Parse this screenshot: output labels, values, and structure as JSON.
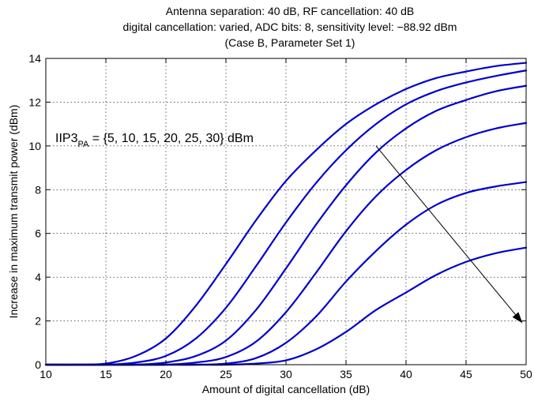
{
  "chart_data": {
    "type": "line",
    "title_lines": [
      "Antenna separation: 40 dB, RF cancellation: 40 dB",
      "digital cancellation: varied, ADC bits: 8, sensitivity level: −88.92 dBm",
      "(Case B, Parameter Set 1)"
    ],
    "xlabel": "Amount of digital cancellation (dB)",
    "ylabel": "Increase in maximum transmit power (dBm)",
    "xlim": [
      10,
      50
    ],
    "ylim": [
      0,
      14
    ],
    "xticks": [
      10,
      15,
      20,
      25,
      30,
      35,
      40,
      45,
      50
    ],
    "yticks": [
      0,
      2,
      4,
      6,
      8,
      10,
      12,
      14
    ],
    "grid": true,
    "line_color": "#0000cc",
    "annotation": {
      "text_main": "IIP3",
      "text_sub": "PA",
      "text_rest": " = {5, 10, 15, 20, 25, 30} dBm",
      "arrow_from": [
        37.5,
        10.0
      ],
      "arrow_to": [
        49.7,
        1.9
      ]
    },
    "x": [
      10,
      12.5,
      15,
      17.5,
      20,
      22.5,
      25,
      27.5,
      30,
      32.5,
      35,
      37.5,
      40,
      42.5,
      45,
      47.5,
      50
    ],
    "series": [
      {
        "values": [
          0,
          0,
          0.05,
          0.4,
          1.2,
          2.7,
          4.6,
          6.6,
          8.4,
          9.8,
          11.0,
          11.9,
          12.6,
          13.1,
          13.4,
          13.65,
          13.8
        ]
      },
      {
        "values": [
          0,
          0,
          0,
          0.1,
          0.4,
          1.2,
          2.6,
          4.5,
          6.5,
          8.3,
          9.8,
          11.0,
          11.9,
          12.5,
          12.9,
          13.2,
          13.45
        ]
      },
      {
        "values": [
          0,
          0,
          0,
          0,
          0.1,
          0.4,
          1.1,
          2.5,
          4.4,
          6.4,
          8.2,
          9.7,
          10.8,
          11.6,
          12.1,
          12.5,
          12.75
        ]
      },
      {
        "values": [
          0,
          0,
          0,
          0,
          0,
          0.1,
          0.35,
          1.05,
          2.4,
          4.2,
          6.1,
          7.7,
          8.9,
          9.8,
          10.4,
          10.8,
          11.05
        ]
      },
      {
        "values": [
          0,
          0,
          0,
          0,
          0,
          0,
          0.05,
          0.3,
          1.0,
          2.2,
          3.8,
          5.2,
          6.4,
          7.3,
          7.85,
          8.15,
          8.35
        ]
      },
      {
        "values": [
          0,
          0,
          0,
          0,
          0,
          0,
          0,
          0.05,
          0.2,
          0.7,
          1.5,
          2.5,
          3.3,
          4.1,
          4.7,
          5.1,
          5.35
        ]
      }
    ]
  }
}
